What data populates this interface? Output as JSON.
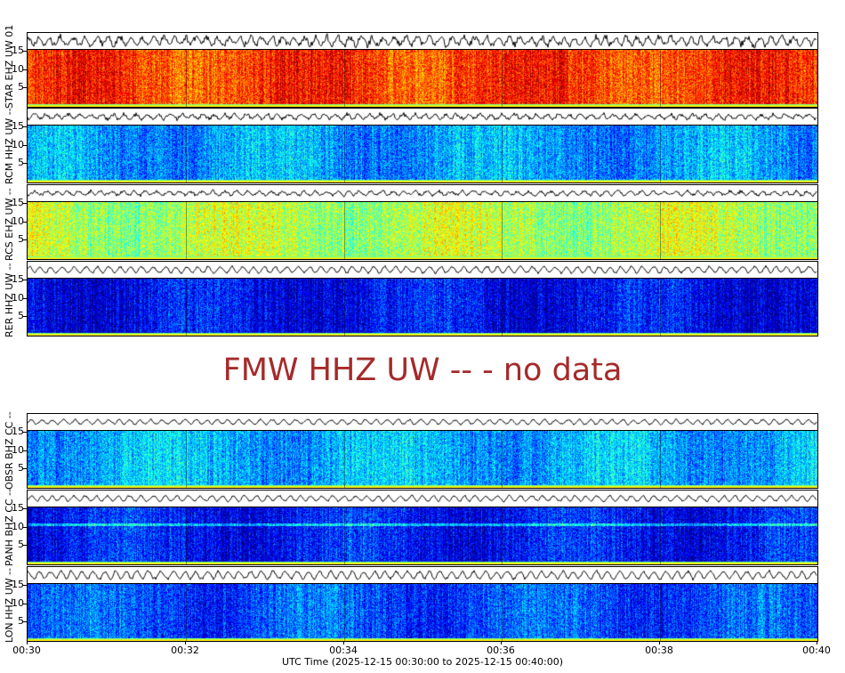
{
  "chart_data": {
    "type": "heatmap",
    "xlabel": "UTC Time (2025-12-15 00:30:00 to 2025-12-15 00:40:00)",
    "x_ticks": [
      "00:30",
      "00:32",
      "00:34",
      "00:36",
      "00:38",
      "00:40"
    ],
    "y_ticks": [
      "5",
      "10",
      "15"
    ],
    "ylim": [
      0,
      15.5
    ],
    "colormap": "jet",
    "upper_group": [
      {
        "label": "STAR EHZ UW 01",
        "level": 0.82,
        "wave_amp": 0.6
      },
      {
        "label": "RCM HHZ UW --",
        "level": 0.28,
        "wave_amp": 0.35
      },
      {
        "label": "RCS EHZ UW --",
        "level": 0.55,
        "wave_amp": 0.3
      },
      {
        "label": "RER HHZ UW --",
        "level": 0.12,
        "wave_amp": 0.45
      }
    ],
    "no_data_message": "FMW HHZ UW -- - no data",
    "lower_group": [
      {
        "label": "OBSR BHZ CC --",
        "level": 0.3,
        "wave_amp": 0.35
      },
      {
        "label": "PANH BHZ CC --",
        "level": 0.14,
        "wave_amp": 0.4
      },
      {
        "label": "LON HHZ UW --",
        "level": 0.2,
        "wave_amp": 0.55
      }
    ]
  }
}
